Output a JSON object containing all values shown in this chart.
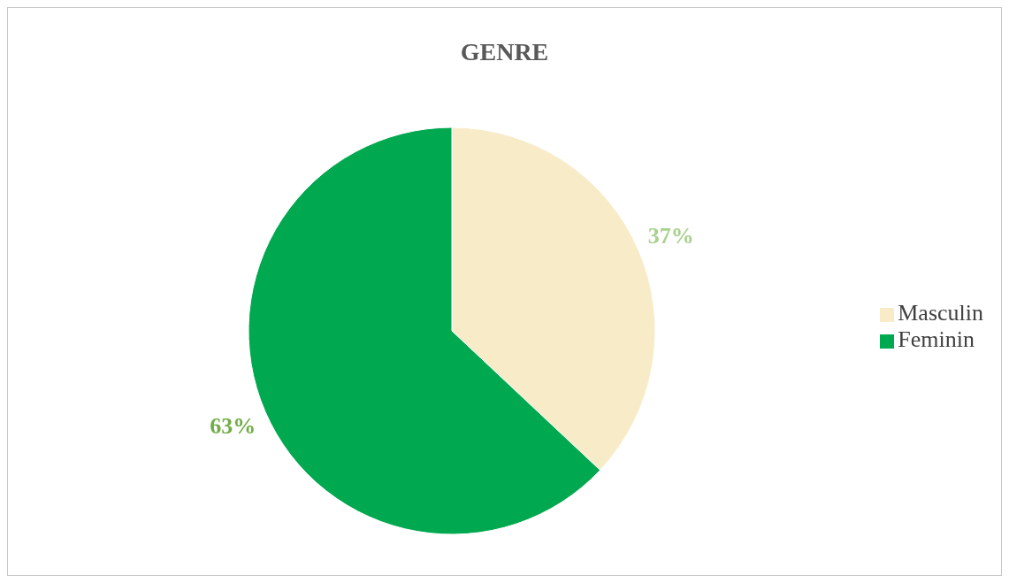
{
  "chart_data": {
    "type": "pie",
    "title": "GENRE",
    "categories": [
      "Masculin",
      "Feminin"
    ],
    "values": [
      37,
      63
    ],
    "colors": [
      "#f8ecc8",
      "#00a84f"
    ],
    "value_labels": [
      "37%",
      "63%"
    ],
    "legend": "right"
  }
}
